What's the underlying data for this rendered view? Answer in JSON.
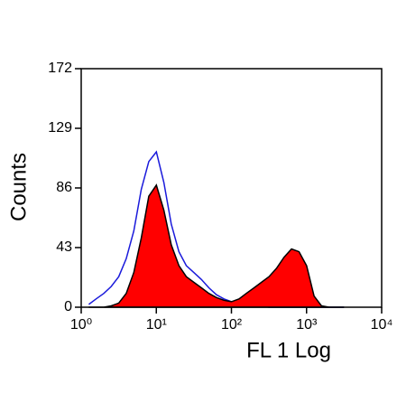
{
  "chart_data": {
    "type": "histogram-overlay",
    "x_label": "FL 1 Log",
    "y_label": "Counts",
    "x": [
      1.26,
      1.58,
      2,
      2.51,
      3.16,
      3.98,
      5.01,
      6.31,
      7.94,
      10,
      12.6,
      15.8,
      20,
      25.1,
      31.6,
      39.8,
      50.1,
      63.1,
      79.4,
      100,
      126,
      158,
      200,
      251,
      316,
      398,
      501,
      631,
      794,
      1000,
      1260,
      1580,
      2000,
      2510,
      3160
    ],
    "series": [
      {
        "color": "#1a1adb",
        "fill": false,
        "values": [
          2,
          6,
          10,
          15,
          22,
          35,
          55,
          85,
          105,
          112,
          90,
          60,
          40,
          30,
          25,
          20,
          14,
          9,
          6,
          4,
          3,
          2,
          1,
          1,
          0,
          0,
          0,
          0,
          0,
          0,
          0,
          0,
          0,
          0,
          0
        ]
      },
      {
        "color": "#ff0000",
        "fill": true,
        "values": [
          0,
          0,
          0,
          1,
          3,
          10,
          25,
          50,
          80,
          88,
          70,
          45,
          30,
          22,
          18,
          14,
          10,
          7,
          5,
          4,
          6,
          10,
          14,
          18,
          22,
          28,
          36,
          42,
          40,
          30,
          8,
          1,
          0,
          0,
          0
        ]
      }
    ],
    "xlog": true,
    "xlim": [
      1,
      10000
    ],
    "xticks": [
      {
        "value": 1,
        "label": "10⁰"
      },
      {
        "value": 10,
        "label": "10¹"
      },
      {
        "value": 100,
        "label": "10²"
      },
      {
        "value": 1000,
        "label": "10³"
      },
      {
        "value": 10000,
        "label": "10⁴"
      }
    ],
    "ylim": [
      0,
      172
    ],
    "yticks": [
      0,
      43,
      86,
      129,
      172
    ]
  }
}
